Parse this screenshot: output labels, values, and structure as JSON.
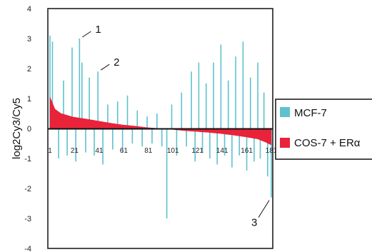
{
  "chart_data": {
    "type": "bar",
    "ylabel": "log2Cy3/Cy5",
    "xlabel": "",
    "ylim": [
      -4,
      4
    ],
    "yticks": [
      "4",
      "3",
      "2",
      "1",
      "0",
      "-1",
      "-2",
      "-3",
      "-4"
    ],
    "xticks": [
      "1",
      "21",
      "41",
      "61",
      "81",
      "101",
      "121",
      "141",
      "161",
      "181"
    ],
    "x_count": 181,
    "legend_position": "right",
    "series": [
      {
        "name": "MCF-7",
        "color": "#5ec1cf",
        "values_by_index": {
          "1": 3.1,
          "3": 2.9,
          "5": 0.5,
          "8": -1.0,
          "12": 1.6,
          "15": -0.9,
          "19": 2.7,
          "22": -1.1,
          "25": 3.0,
          "27": 2.2,
          "30": -0.8,
          "33": 1.7,
          "37": -0.9,
          "40": 1.9,
          "44": -1.2,
          "48": 0.8,
          "52": -0.7,
          "56": 0.9,
          "60": -0.8,
          "64": 1.1,
          "68": -0.5,
          "72": 0.6,
          "76": -0.6,
          "80": 0.4,
          "84": -0.5,
          "88": 0.5,
          "92": -0.6,
          "96": -3.0,
          "100": 0.8,
          "104": -0.9,
          "108": 1.2,
          "112": -0.6,
          "116": 1.9,
          "119": -1.1,
          "122": 2.2,
          "125": -0.8,
          "128": 1.5,
          "131": -1.0,
          "134": 2.2,
          "137": -1.2,
          "140": 2.8,
          "143": -0.9,
          "146": 1.6,
          "149": -1.3,
          "152": 2.4,
          "155": -0.9,
          "158": 2.9,
          "161": -1.4,
          "164": 1.7,
          "167": -1.1,
          "170": 2.2,
          "172": -1.0,
          "175": 1.2,
          "178": -1.6,
          "181": -2.3
        }
      },
      {
        "name": "COS-7 + ERα",
        "color": "#e8233a",
        "curve": [
          [
            1,
            1.05
          ],
          [
            5,
            0.65
          ],
          [
            10,
            0.5
          ],
          [
            20,
            0.38
          ],
          [
            30,
            0.32
          ],
          [
            40,
            0.25
          ],
          [
            50,
            0.18
          ],
          [
            60,
            0.12
          ],
          [
            70,
            0.08
          ],
          [
            80,
            0.03
          ],
          [
            90,
            0.0
          ],
          [
            100,
            -0.03
          ],
          [
            110,
            -0.07
          ],
          [
            120,
            -0.1
          ],
          [
            130,
            -0.13
          ],
          [
            140,
            -0.17
          ],
          [
            150,
            -0.22
          ],
          [
            160,
            -0.28
          ],
          [
            170,
            -0.35
          ],
          [
            176,
            -0.45
          ],
          [
            181,
            -0.55
          ]
        ]
      }
    ],
    "annotations": [
      {
        "text": "1",
        "x": 25,
        "y": 3.0
      },
      {
        "text": "2",
        "x": 40,
        "y": 1.9
      },
      {
        "text": "3",
        "x": 181,
        "y": -2.3
      }
    ]
  }
}
